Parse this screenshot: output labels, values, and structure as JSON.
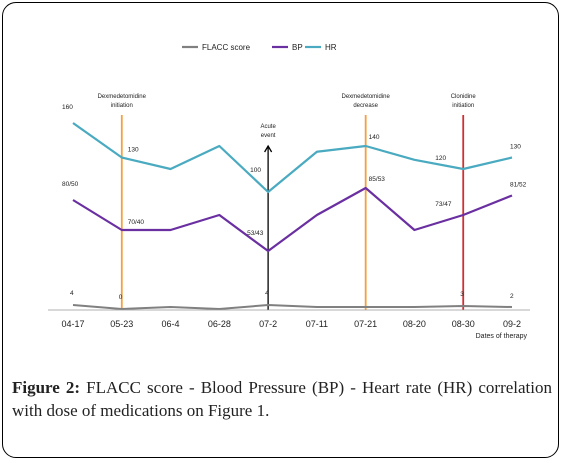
{
  "chart_data": {
    "type": "line",
    "categories": [
      "04-17",
      "05-23",
      "06-4",
      "06-28",
      "07-2",
      "07-11",
      "07-21",
      "08-20",
      "08-30",
      "09-2"
    ],
    "xlabel": "Dates of therapy",
    "legend_position": "top-center",
    "grid": false,
    "series": [
      {
        "name": "FLACC score",
        "color": "#808080",
        "values": [
          4,
          0,
          2,
          0,
          4,
          2,
          2,
          2,
          3,
          2
        ],
        "labels": [
          "4",
          "0",
          "",
          "",
          "4",
          "",
          "",
          "",
          "3",
          "2"
        ]
      },
      {
        "name": "BP",
        "color": "#6a2fa0",
        "values": [
          65,
          55,
          55,
          60,
          48,
          60,
          69,
          55,
          60,
          66.5
        ],
        "labels": [
          "80/50",
          "70/40",
          "",
          "",
          "53/43",
          "",
          "85/53",
          "",
          "73/47",
          "81/52"
        ]
      },
      {
        "name": "HR",
        "color": "#4aaac0",
        "values": [
          160,
          130,
          120,
          140,
          100,
          135,
          140,
          128,
          120,
          130
        ],
        "labels": [
          "160",
          "130",
          "",
          "",
          "100",
          "",
          "140",
          "",
          "120",
          "130"
        ]
      }
    ],
    "annotations": [
      {
        "text": "Dexmedetomidine initiation",
        "lines": [
          "Dexmedetomidine",
          "initiation"
        ],
        "at": "05-23",
        "color": "#f5a040"
      },
      {
        "text": "Acute event",
        "lines": [
          "Acute",
          "event"
        ],
        "at": "07-2",
        "color": "#000000",
        "arrow": true
      },
      {
        "text": "Dexmedetomidine decrease",
        "lines": [
          "Dexmedetomidine",
          "decrease"
        ],
        "at": "07-21",
        "color": "#f5a040"
      },
      {
        "text": "Clonidine initiation",
        "lines": [
          "Clonidine",
          "initiation"
        ],
        "at": "08-30",
        "color": "#d03030"
      }
    ]
  },
  "caption": {
    "label": "Figure 2:",
    "text": " FLACC score - Blood Pressure (BP) - Heart rate (HR) correlation with dose of medications on Figure 1."
  }
}
